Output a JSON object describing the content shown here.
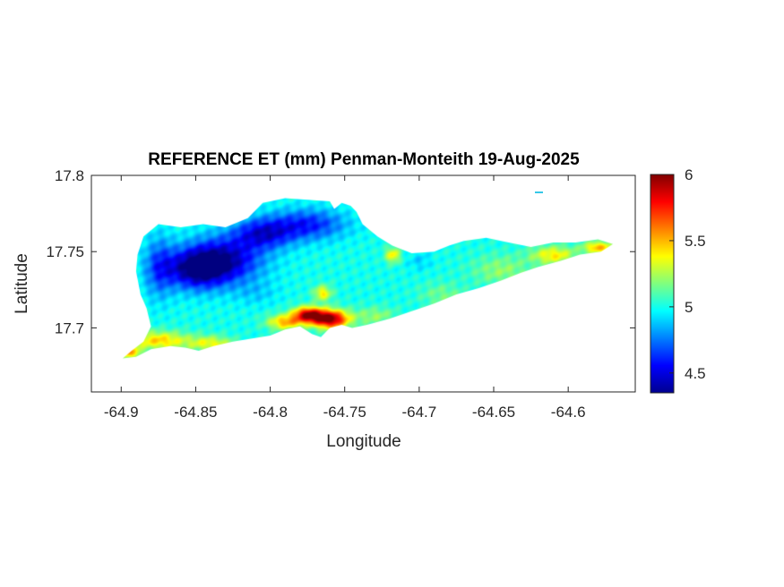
{
  "chart_data": {
    "type": "heatmap",
    "title": "REFERENCE ET (mm) Penman-Monteith 19-Aug-2025",
    "xlabel": "Longitude",
    "ylabel": "Latitude",
    "xlim": [
      -64.92,
      -64.555
    ],
    "ylim": [
      17.658,
      17.8
    ],
    "xticks": [
      -64.9,
      -64.85,
      -64.8,
      -64.75,
      -64.7,
      -64.65,
      -64.6
    ],
    "yticks": [
      17.7,
      17.75,
      17.8
    ],
    "colorbar": {
      "colormap": "jet",
      "range": [
        4.35,
        6.0
      ],
      "ticks": [
        4.5,
        5,
        5.5,
        6
      ]
    },
    "grid": false,
    "legend": "none",
    "island_outline": [
      [
        -64.899,
        17.68
      ],
      [
        -64.893,
        17.685
      ],
      [
        -64.885,
        17.691
      ],
      [
        -64.88,
        17.701
      ],
      [
        -64.883,
        17.713
      ],
      [
        -64.887,
        17.722
      ],
      [
        -64.89,
        17.737
      ],
      [
        -64.889,
        17.748
      ],
      [
        -64.885,
        17.76
      ],
      [
        -64.875,
        17.768
      ],
      [
        -64.86,
        17.766
      ],
      [
        -64.845,
        17.768
      ],
      [
        -64.83,
        17.766
      ],
      [
        -64.815,
        17.772
      ],
      [
        -64.805,
        17.782
      ],
      [
        -64.79,
        17.785
      ],
      [
        -64.775,
        17.784
      ],
      [
        -64.76,
        17.783
      ],
      [
        -64.757,
        17.778
      ],
      [
        -64.752,
        17.782
      ],
      [
        -64.746,
        17.78
      ],
      [
        -64.742,
        17.776
      ],
      [
        -64.738,
        17.768
      ],
      [
        -64.728,
        17.76
      ],
      [
        -64.718,
        17.754
      ],
      [
        -64.705,
        17.749
      ],
      [
        -64.69,
        17.75
      ],
      [
        -64.68,
        17.754
      ],
      [
        -64.67,
        17.757
      ],
      [
        -64.655,
        17.759
      ],
      [
        -64.64,
        17.756
      ],
      [
        -64.625,
        17.753
      ],
      [
        -64.61,
        17.756
      ],
      [
        -64.595,
        17.756
      ],
      [
        -64.58,
        17.758
      ],
      [
        -64.57,
        17.755
      ],
      [
        -64.578,
        17.75
      ],
      [
        -64.592,
        17.748
      ],
      [
        -64.605,
        17.744
      ],
      [
        -64.62,
        17.74
      ],
      [
        -64.632,
        17.736
      ],
      [
        -64.645,
        17.731
      ],
      [
        -64.66,
        17.726
      ],
      [
        -64.675,
        17.722
      ],
      [
        -64.69,
        17.716
      ],
      [
        -64.705,
        17.711
      ],
      [
        -64.72,
        17.706
      ],
      [
        -64.735,
        17.702
      ],
      [
        -64.745,
        17.7
      ],
      [
        -64.752,
        17.702
      ],
      [
        -64.76,
        17.7
      ],
      [
        -64.766,
        17.694
      ],
      [
        -64.772,
        17.696
      ],
      [
        -64.78,
        17.701
      ],
      [
        -64.79,
        17.699
      ],
      [
        -64.8,
        17.695
      ],
      [
        -64.812,
        17.693
      ],
      [
        -64.825,
        17.691
      ],
      [
        -64.838,
        17.688
      ],
      [
        -64.848,
        17.685
      ],
      [
        -64.857,
        17.687
      ],
      [
        -64.867,
        17.688
      ],
      [
        -64.88,
        17.686
      ],
      [
        -64.89,
        17.681
      ]
    ],
    "value_field": [
      {
        "lon": -64.85,
        "lat": 17.739,
        "value": 4.4,
        "spread": [
          0.02,
          0.013
        ]
      },
      {
        "lon": -64.83,
        "lat": 17.745,
        "value": 4.48,
        "spread": [
          0.025,
          0.015
        ]
      },
      {
        "lon": -64.775,
        "lat": 17.768,
        "value": 4.6,
        "spread": [
          0.025,
          0.01
        ]
      },
      {
        "lon": -64.805,
        "lat": 17.762,
        "value": 4.55,
        "spread": [
          0.02,
          0.01
        ]
      },
      {
        "lon": -64.875,
        "lat": 17.74,
        "value": 4.7,
        "spread": [
          0.01,
          0.02
        ]
      },
      {
        "lon": -64.76,
        "lat": 17.706,
        "value": 6.0,
        "spread": [
          0.012,
          0.006
        ]
      },
      {
        "lon": -64.775,
        "lat": 17.709,
        "value": 5.85,
        "spread": [
          0.01,
          0.005
        ]
      },
      {
        "lon": -64.79,
        "lat": 17.704,
        "value": 5.5,
        "spread": [
          0.012,
          0.005
        ]
      },
      {
        "lon": -64.765,
        "lat": 17.723,
        "value": 5.4,
        "spread": [
          0.006,
          0.005
        ]
      },
      {
        "lon": -64.73,
        "lat": 17.708,
        "value": 5.2,
        "spread": [
          0.015,
          0.006
        ]
      },
      {
        "lon": -64.875,
        "lat": 17.692,
        "value": 5.45,
        "spread": [
          0.02,
          0.006
        ]
      },
      {
        "lon": -64.895,
        "lat": 17.684,
        "value": 5.5,
        "spread": [
          0.008,
          0.004
        ]
      },
      {
        "lon": -64.84,
        "lat": 17.69,
        "value": 5.35,
        "spread": [
          0.015,
          0.005
        ]
      },
      {
        "lon": -64.58,
        "lat": 17.753,
        "value": 5.5,
        "spread": [
          0.01,
          0.004
        ]
      },
      {
        "lon": -64.61,
        "lat": 17.748,
        "value": 5.4,
        "spread": [
          0.015,
          0.006
        ]
      },
      {
        "lon": -64.645,
        "lat": 17.738,
        "value": 5.2,
        "spread": [
          0.02,
          0.01
        ]
      },
      {
        "lon": -64.685,
        "lat": 17.722,
        "value": 5.15,
        "spread": [
          0.015,
          0.008
        ]
      },
      {
        "lon": -64.718,
        "lat": 17.748,
        "value": 5.4,
        "spread": [
          0.005,
          0.005
        ]
      },
      {
        "lon": -64.7,
        "lat": 17.744,
        "value": 4.9,
        "spread": [
          0.008,
          0.006
        ]
      },
      {
        "lon": -64.745,
        "lat": 17.76,
        "value": 5.0,
        "spread": [
          0.01,
          0.008
        ]
      },
      {
        "lon": -64.81,
        "lat": 17.723,
        "value": 4.9,
        "spread": [
          0.015,
          0.008
        ]
      }
    ],
    "base_value": 5.0
  }
}
